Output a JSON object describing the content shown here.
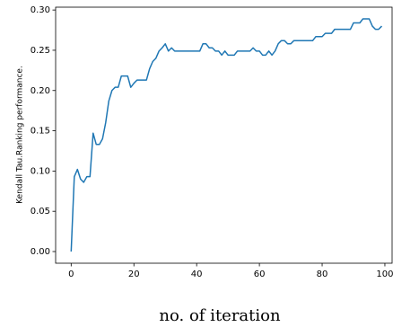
{
  "chart_data": {
    "type": "line",
    "y_label": "Kendall Tau.Ranking performance.",
    "x_label": "no. of iteration",
    "x": [
      0,
      1,
      2,
      3,
      4,
      5,
      6,
      7,
      8,
      9,
      10,
      11,
      12,
      13,
      14,
      15,
      16,
      17,
      18,
      19,
      20,
      21,
      22,
      23,
      24,
      25,
      26,
      27,
      28,
      29,
      30,
      31,
      32,
      33,
      34,
      35,
      36,
      37,
      38,
      39,
      40,
      41,
      42,
      43,
      44,
      45,
      46,
      47,
      48,
      49,
      50,
      51,
      52,
      53,
      54,
      55,
      56,
      57,
      58,
      59,
      60,
      61,
      62,
      63,
      64,
      65,
      66,
      67,
      68,
      69,
      70,
      71,
      72,
      73,
      74,
      75,
      76,
      77,
      78,
      79,
      80,
      81,
      82,
      83,
      84,
      85,
      86,
      87,
      88,
      89,
      90,
      91,
      92,
      93,
      94,
      95,
      96,
      97,
      98,
      99
    ],
    "series": [
      {
        "color": "#1f77b4",
        "values": [
          0.0,
          0.093,
          0.102,
          0.09,
          0.086,
          0.093,
          0.093,
          0.147,
          0.133,
          0.133,
          0.14,
          0.16,
          0.187,
          0.2,
          0.204,
          0.204,
          0.218,
          0.218,
          0.218,
          0.204,
          0.209,
          0.213,
          0.213,
          0.213,
          0.213,
          0.227,
          0.236,
          0.24,
          0.249,
          0.253,
          0.258,
          0.249,
          0.253,
          0.249,
          0.249,
          0.249,
          0.249,
          0.249,
          0.249,
          0.249,
          0.249,
          0.249,
          0.258,
          0.258,
          0.253,
          0.253,
          0.249,
          0.249,
          0.244,
          0.249,
          0.244,
          0.244,
          0.244,
          0.249,
          0.249,
          0.249,
          0.249,
          0.249,
          0.253,
          0.249,
          0.249,
          0.244,
          0.244,
          0.249,
          0.244,
          0.249,
          0.258,
          0.262,
          0.262,
          0.258,
          0.258,
          0.262,
          0.262,
          0.262,
          0.262,
          0.262,
          0.262,
          0.262,
          0.267,
          0.267,
          0.267,
          0.271,
          0.271,
          0.271,
          0.276,
          0.276,
          0.276,
          0.276,
          0.276,
          0.276,
          0.284,
          0.284,
          0.284,
          0.289,
          0.289,
          0.289,
          0.28,
          0.276,
          0.276,
          0.28
        ]
      }
    ],
    "xlim": [
      -4.95,
      102.3
    ],
    "ylim": [
      -0.0145,
      0.3035
    ],
    "xticks": [
      0,
      20,
      40,
      60,
      80,
      100
    ],
    "yticks": [
      {
        "value": 0,
        "label": "0.00"
      },
      {
        "value": 0.05,
        "label": "0.05"
      },
      {
        "value": 0.1,
        "label": "0.10"
      },
      {
        "value": 0.15,
        "label": "0.15"
      },
      {
        "value": 0.2,
        "label": "0.20"
      },
      {
        "value": 0.25,
        "label": "0.25"
      },
      {
        "value": 0.3,
        "label": "0.30"
      }
    ],
    "grid": false
  }
}
